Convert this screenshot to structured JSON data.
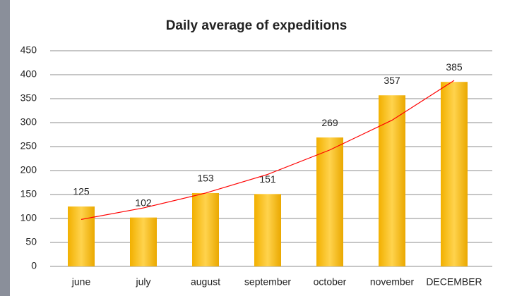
{
  "chart_data": {
    "type": "bar",
    "title": "Daily average of expeditions",
    "categories": [
      "june",
      "july",
      "august",
      "september",
      "october",
      "november",
      "DECEMBER"
    ],
    "values": [
      125,
      102,
      153,
      151,
      269,
      357,
      385
    ],
    "color": "#ffc000",
    "trendline": {
      "color": "#ff0000",
      "values": [
        98,
        122,
        153,
        192,
        243,
        305,
        388
      ]
    },
    "ylim": [
      0,
      450
    ],
    "yticks": [
      0,
      50,
      100,
      150,
      200,
      250,
      300,
      350,
      400,
      450
    ],
    "grid": true
  }
}
